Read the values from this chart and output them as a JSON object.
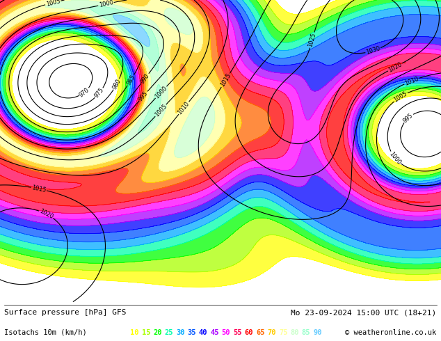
{
  "title_left": "Surface pressure [hPa] GFS",
  "title_right": "Mo 23-09-2024 15:00 UTC (18+21)",
  "legend_label": "Isotachs 10m (km/h)",
  "copyright": "© weatheronline.co.uk",
  "isotach_values": [
    10,
    15,
    20,
    25,
    30,
    35,
    40,
    45,
    50,
    55,
    60,
    65,
    70,
    75,
    80,
    85,
    90
  ],
  "isotach_colors": [
    "#ffff00",
    "#aaff00",
    "#00ff00",
    "#00ffaa",
    "#00aaff",
    "#0055ff",
    "#0000ff",
    "#aa00ff",
    "#ff00ff",
    "#ff0055",
    "#ff0000",
    "#ff6600",
    "#ffcc00",
    "#ffff99",
    "#ccffcc",
    "#99ffcc",
    "#66ccff"
  ],
  "bg_color": "#ffffff",
  "map_bg": "#ffffff",
  "figsize": [
    6.34,
    4.9
  ],
  "dpi": 100,
  "bottom_bar_height": 0.115
}
